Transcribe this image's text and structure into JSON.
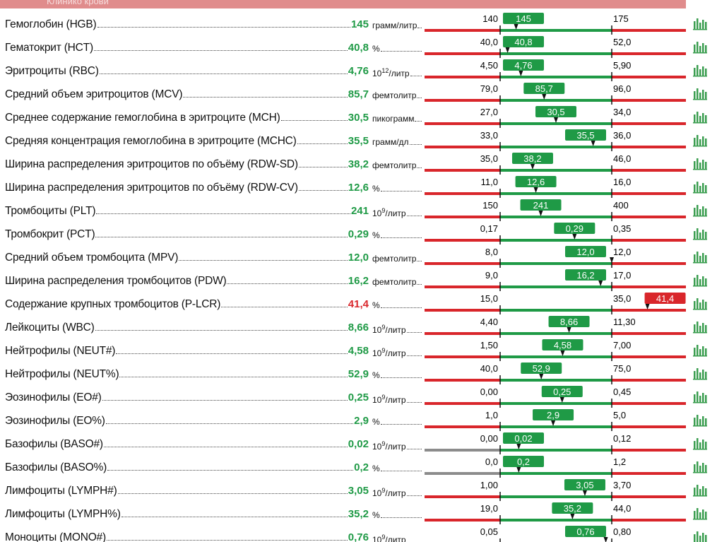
{
  "header": "Клинико крови",
  "colors": {
    "low": "#d9262b",
    "normal": "#1f9a46",
    "high": "#d9262b"
  },
  "rows": [
    {
      "name": "Гемоглобин (HGB)",
      "value": "145",
      "unit": "грамм/литр",
      "low": "140",
      "high": "175"
    },
    {
      "name": "Гематокрит (HCT)",
      "value": "40,8",
      "unit": "%",
      "low": "40,0",
      "high": "52,0"
    },
    {
      "name": "Эритроциты (RBC)",
      "value": "4,76",
      "unit": {
        "base": "10",
        "exp": "12",
        "text": "/литр"
      },
      "low": "4,50",
      "high": "5,90"
    },
    {
      "name": "Средний объем эритроцитов (MCV)",
      "value": "85,7",
      "unit": "фемтолитр",
      "low": "79,0",
      "high": "96,0"
    },
    {
      "name": "Среднее содержание гемоглобина в эритроците (MCH)",
      "value": "30,5",
      "unit": "пикограмм",
      "low": "27,0",
      "high": "34,0"
    },
    {
      "name": "Средняя концентрация гемоглобина в эритроците (MCHC)",
      "value": "35,5",
      "unit": "грамм/дл",
      "low": "33,0",
      "high": "36,0"
    },
    {
      "name": "Ширина распределения эритроцитов по объёму (RDW-SD)",
      "value": "38,2",
      "unit": "фемтолитр",
      "low": "35,0",
      "high": "46,0"
    },
    {
      "name": "Ширина распределения эритроцитов по объёму (RDW-CV)",
      "value": "12,6",
      "unit": "%",
      "low": "11,0",
      "high": "16,0"
    },
    {
      "name": "Тромбоциты (PLT)",
      "value": "241",
      "unit": {
        "base": "10",
        "exp": "9",
        "text": "/литр"
      },
      "low": "150",
      "high": "400"
    },
    {
      "name": "Тромбокрит (PCT)",
      "value": "0,29",
      "unit": "%",
      "low": "0,17",
      "high": "0,35"
    },
    {
      "name": "Средний объем тромбоцита (MPV)",
      "value": "12,0",
      "unit": "фемтолитр",
      "low": "8,0",
      "high": "12,0"
    },
    {
      "name": "Ширина распределения тромбоцитов (PDW)",
      "value": "16,2",
      "unit": "фемтолитр",
      "low": "9,0",
      "high": "17,0"
    },
    {
      "name": "Содержание крупных тромбоцитов (P-LCR)",
      "value": "41,4",
      "unit": "%",
      "low": "15,0",
      "high": "35,0"
    },
    {
      "name": "Лейкоциты (WBC)",
      "value": "8,66",
      "unit": {
        "base": "10",
        "exp": "9",
        "text": "/литр"
      },
      "low": "4,40",
      "high": "11,30"
    },
    {
      "name": "Нейтрофилы (NEUT#)",
      "value": "4,58",
      "unit": {
        "base": "10",
        "exp": "9",
        "text": "/литр"
      },
      "low": "1,50",
      "high": "7,00"
    },
    {
      "name": "Нейтрофилы (NEUT%)",
      "value": "52,9",
      "unit": "%",
      "low": "40,0",
      "high": "75,0"
    },
    {
      "name": "Эозинофилы (EO#)",
      "value": "0,25",
      "unit": {
        "base": "10",
        "exp": "9",
        "text": "/литр"
      },
      "low": "0,00",
      "high": "0,45"
    },
    {
      "name": "Эозинофилы (EO%)",
      "value": "2,9",
      "unit": "%",
      "low": "1,0",
      "high": "5,0"
    },
    {
      "name": "Базофилы (BASO#)",
      "value": "0,02",
      "unit": {
        "base": "10",
        "exp": "9",
        "text": "/литр"
      },
      "low": "0,00",
      "high": "0,12",
      "low_color": "#8c8c8c"
    },
    {
      "name": "Базофилы (BASO%)",
      "value": "0,2",
      "unit": "%",
      "low": "0,0",
      "high": "1,2",
      "low_color": "#8c8c8c"
    },
    {
      "name": "Лимфоциты (LYMPH#)",
      "value": "3,05",
      "unit": {
        "base": "10",
        "exp": "9",
        "text": "/литр"
      },
      "low": "1,00",
      "high": "3,70"
    },
    {
      "name": "Лимфоциты (LYMPH%)",
      "value": "35,2",
      "unit": "%",
      "low": "19,0",
      "high": "44,0"
    },
    {
      "name": "Моноциты (MONO#)",
      "value": "0,76",
      "unit": {
        "base": "10",
        "exp": "9",
        "text": "/литр"
      },
      "low": "0,05",
      "high": "0,80"
    }
  ]
}
